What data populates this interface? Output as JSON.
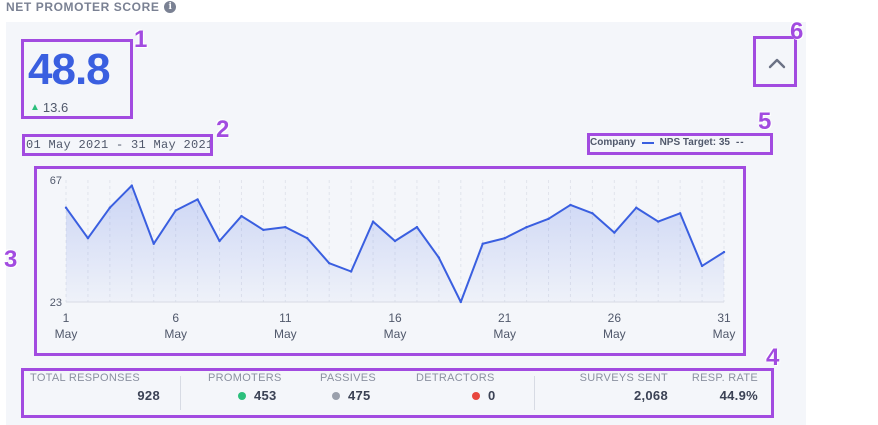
{
  "section": {
    "title": "NET PROMOTER SCORE",
    "info_icon": "info-icon"
  },
  "score": {
    "value": "48.8",
    "delta": "13.6",
    "delta_direction": "up"
  },
  "date_range": "01 May 2021 - 31 May 2021",
  "legend": {
    "company_label": "Company",
    "target_label": "NPS Target: 35"
  },
  "colors": {
    "accent": "#3a5fe0",
    "promoter": "#2bbf7c",
    "passive": "#9aa0ac",
    "detractor": "#e8473e",
    "annotation": "#a24be0"
  },
  "callouts": [
    "1",
    "2",
    "3",
    "4",
    "5",
    "6"
  ],
  "chart_data": {
    "type": "area",
    "series": [
      {
        "values": [
          57,
          46,
          57,
          65,
          44,
          56,
          60,
          45,
          54,
          49,
          50,
          46,
          37,
          34,
          52,
          45,
          50,
          39,
          23,
          44,
          46,
          50,
          53,
          58,
          55,
          48,
          57,
          52,
          55,
          36,
          41
        ]
      }
    ],
    "x": [
      1,
      2,
      3,
      4,
      5,
      6,
      7,
      8,
      9,
      10,
      11,
      12,
      13,
      14,
      15,
      16,
      17,
      18,
      19,
      20,
      21,
      22,
      23,
      24,
      25,
      26,
      27,
      28,
      29,
      30,
      31
    ],
    "x_tick_labels": [
      {
        "day": "1",
        "month": "May"
      },
      {
        "day": "6",
        "month": "May"
      },
      {
        "day": "11",
        "month": "May"
      },
      {
        "day": "16",
        "month": "May"
      },
      {
        "day": "21",
        "month": "May"
      },
      {
        "day": "26",
        "month": "May"
      },
      {
        "day": "31",
        "month": "May"
      }
    ],
    "x_tick_days": [
      1,
      6,
      11,
      16,
      21,
      26,
      31
    ],
    "y_tick_labels": [
      "67",
      "23"
    ],
    "ylim": [
      23,
      67
    ]
  },
  "stats": [
    {
      "label": "TOTAL RESPONSES",
      "value": "928"
    },
    {
      "label": "PROMOTERS",
      "value": "453",
      "dot": "promoter"
    },
    {
      "label": "PASSIVES",
      "value": "475",
      "dot": "passive"
    },
    {
      "label": "DETRACTORS",
      "value": "0",
      "dot": "detractor"
    },
    {
      "label": "SURVEYS SENT",
      "value": "2,068"
    },
    {
      "label": "RESP. RATE",
      "value": "44.9%"
    }
  ]
}
